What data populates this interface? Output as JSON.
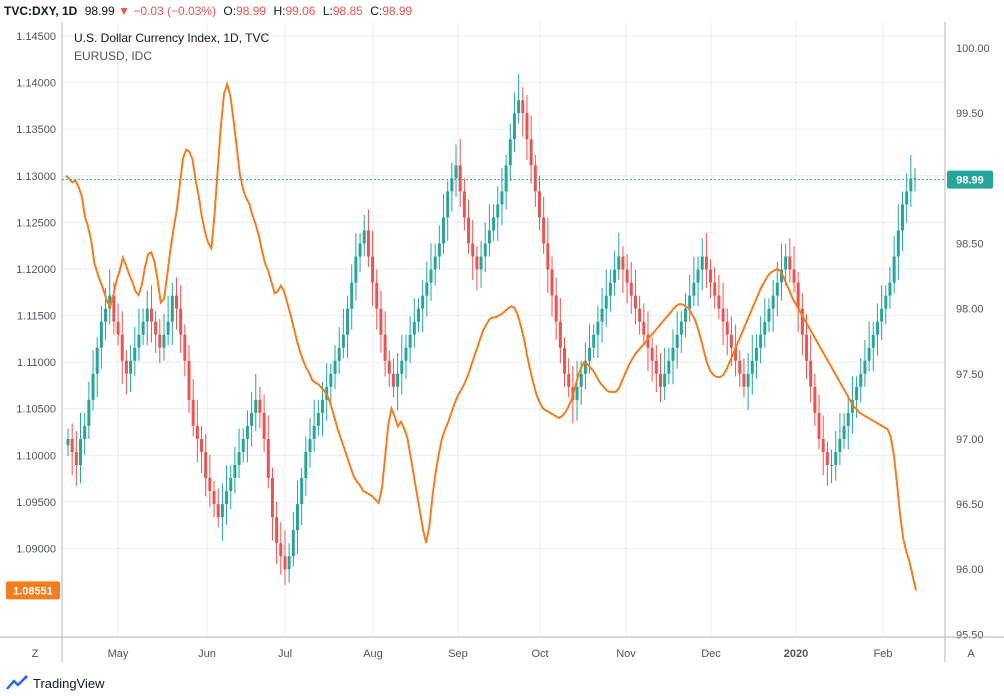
{
  "header": {
    "symbol": "TVC:DXY, 1D",
    "price": "98.99",
    "change_arrow": "▼",
    "change": "−0.03 (−0.03%)",
    "open_label": "O:",
    "open": "98.99",
    "high_label": "H:",
    "high": "99.06",
    "low_label": "L:",
    "low": "98.85",
    "close_label": "C:",
    "close": "98.99"
  },
  "footer": {
    "brand": "TradingView",
    "z_button": "Z",
    "a_button": "A"
  },
  "colors": {
    "up": "#26a69a",
    "down": "#ef5350",
    "eurusd": "#f57c1f",
    "grid": "#e9ecf0",
    "axis_text": "#50535e",
    "last_price": "#26a69a",
    "dotted": "#26a69a"
  },
  "chart_data": {
    "type": "line",
    "title": "U.S. Dollar Currency Index, 1D, TVC",
    "subtitle": "EURUSD, IDC",
    "x_ticks": [
      "May",
      "Jun",
      "Jul",
      "Aug",
      "Sep",
      "Oct",
      "Nov",
      "Dec",
      "2020",
      "Feb"
    ],
    "left_axis": {
      "ylim": [
        1.0805,
        1.1465
      ],
      "ticks": [
        "1.14500",
        "1.14000",
        "1.13500",
        "1.13000",
        "1.12500",
        "1.12000",
        "1.11500",
        "1.11000",
        "1.10500",
        "1.10000",
        "1.09500",
        "1.09000"
      ],
      "last_value_label": "1.08551"
    },
    "right_axis": {
      "ylim": [
        95.48,
        100.2
      ],
      "ticks": [
        "100.00",
        "99.50",
        "99.00",
        "98.50",
        "98.00",
        "97.50",
        "97.00",
        "96.50",
        "96.00",
        "95.50"
      ],
      "last_value_label": "98.99",
      "last_value": 98.99
    },
    "series": [
      {
        "name": "EURUSD",
        "axis": "left",
        "style": "line",
        "values": [
          1.13,
          1.1297,
          1.1293,
          1.1295,
          1.1288,
          1.1278,
          1.1256,
          1.1245,
          1.123,
          1.1206,
          1.1195,
          1.1185,
          1.1176,
          1.1165,
          1.116,
          1.1172,
          1.1188,
          1.1198,
          1.1212,
          1.1204,
          1.1194,
          1.1186,
          1.1176,
          1.1172,
          1.1183,
          1.1202,
          1.1216,
          1.1218,
          1.1208,
          1.1188,
          1.1164,
          1.1168,
          1.1192,
          1.122,
          1.1242,
          1.1262,
          1.129,
          1.1318,
          1.1328,
          1.1326,
          1.1318,
          1.1296,
          1.1278,
          1.1256,
          1.124,
          1.1228,
          1.1222,
          1.1258,
          1.1306,
          1.1352,
          1.1388,
          1.1398,
          1.1386,
          1.136,
          1.1332,
          1.1302,
          1.1286,
          1.1276,
          1.127,
          1.1258,
          1.1248,
          1.1236,
          1.122,
          1.1206,
          1.1198,
          1.1186,
          1.1174,
          1.1176,
          1.1182,
          1.1176,
          1.1164,
          1.1152,
          1.1138,
          1.1124,
          1.1112,
          1.1102,
          1.1094,
          1.1088,
          1.108,
          1.1078,
          1.1076,
          1.1072,
          1.1068,
          1.1062,
          1.1052,
          1.104,
          1.1028,
          1.1018,
          1.1008,
          1.0998,
          1.0988,
          1.0978,
          1.0972,
          1.0968,
          1.0962,
          1.096,
          1.0958,
          1.0956,
          1.0952,
          1.0949,
          1.0965,
          1.0998,
          1.1033,
          1.105,
          1.1042,
          1.1031,
          1.1036,
          1.1029,
          1.1019,
          1.1,
          1.098,
          1.096,
          1.094,
          1.092,
          1.0906,
          1.0924,
          1.0956,
          1.0982,
          1.1002,
          1.1018,
          1.1028,
          1.1036,
          1.1046,
          1.1056,
          1.1064,
          1.107,
          1.1076,
          1.1084,
          1.1094,
          1.1104,
          1.1114,
          1.1124,
          1.1134,
          1.114,
          1.1146,
          1.1148,
          1.1148,
          1.115,
          1.1152,
          1.1155,
          1.1158,
          1.116,
          1.1158,
          1.115,
          1.1138,
          1.1124,
          1.1106,
          1.109,
          1.1076,
          1.1064,
          1.1056,
          1.105,
          1.1048,
          1.1046,
          1.1044,
          1.1042,
          1.104,
          1.1042,
          1.1046,
          1.1052,
          1.106,
          1.1072,
          1.1084,
          1.1094,
          1.11,
          1.1098,
          1.1094,
          1.109,
          1.1084,
          1.1078,
          1.1074,
          1.107,
          1.1068,
          1.1068,
          1.1068,
          1.1072,
          1.108,
          1.1088,
          1.1096,
          1.1102,
          1.1108,
          1.1112,
          1.1116,
          1.112,
          1.1124,
          1.1128,
          1.1132,
          1.1136,
          1.114,
          1.1144,
          1.1148,
          1.1152,
          1.1156,
          1.116,
          1.1162,
          1.1162,
          1.116,
          1.1158,
          1.1152,
          1.1146,
          1.1136,
          1.1124,
          1.111,
          1.1098,
          1.109,
          1.1086,
          1.1084,
          1.1084,
          1.1086,
          1.1092,
          1.11,
          1.1108,
          1.1116,
          1.1124,
          1.1132,
          1.114,
          1.1148,
          1.1156,
          1.1164,
          1.1172,
          1.118,
          1.1186,
          1.1192,
          1.1196,
          1.1198,
          1.12,
          1.1198,
          1.1192,
          1.1184,
          1.1176,
          1.1168,
          1.1162,
          1.1156,
          1.115,
          1.1144,
          1.1138,
          1.1132,
          1.1126,
          1.112,
          1.1114,
          1.1108,
          1.1102,
          1.1096,
          1.109,
          1.1084,
          1.1078,
          1.1072,
          1.1066,
          1.106,
          1.1054,
          1.105,
          1.1046,
          1.1044,
          1.1042,
          1.104,
          1.1038,
          1.1036,
          1.1034,
          1.1032,
          1.103,
          1.1028,
          1.102,
          1.1,
          1.097,
          1.0935,
          1.091,
          1.0896,
          1.0885,
          1.087,
          1.0855
        ]
      },
      {
        "name": "DXY",
        "axis": "right",
        "style": "candles",
        "values": [
          97.0,
          96.9,
          96.8,
          97.0,
          97.1,
          97.3,
          97.5,
          97.7,
          97.9,
          98.0,
          98.1,
          97.9,
          97.8,
          97.6,
          97.5,
          97.6,
          97.7,
          97.8,
          97.9,
          98.0,
          97.9,
          97.8,
          97.7,
          97.8,
          97.9,
          98.1,
          98.0,
          97.8,
          97.6,
          97.3,
          97.1,
          97.0,
          96.9,
          96.7,
          96.6,
          96.5,
          96.4,
          96.5,
          96.6,
          96.7,
          96.8,
          96.9,
          97.0,
          97.1,
          97.2,
          97.3,
          97.2,
          97.0,
          96.7,
          96.4,
          96.2,
          96.1,
          96.0,
          96.1,
          96.3,
          96.5,
          96.7,
          96.9,
          97.0,
          97.1,
          97.2,
          97.3,
          97.4,
          97.5,
          97.6,
          97.7,
          97.8,
          98.0,
          98.2,
          98.4,
          98.5,
          98.6,
          98.4,
          98.2,
          98.0,
          97.8,
          97.6,
          97.5,
          97.4,
          97.5,
          97.6,
          97.7,
          97.8,
          97.9,
          98.0,
          98.1,
          98.2,
          98.3,
          98.4,
          98.5,
          98.7,
          98.9,
          99.0,
          99.1,
          98.9,
          98.7,
          98.5,
          98.4,
          98.3,
          98.4,
          98.5,
          98.6,
          98.7,
          98.8,
          98.9,
          99.1,
          99.3,
          99.5,
          99.6,
          99.5,
          99.3,
          99.1,
          98.9,
          98.7,
          98.5,
          98.3,
          98.1,
          97.9,
          97.7,
          97.5,
          97.4,
          97.3,
          97.4,
          97.5,
          97.6,
          97.7,
          97.8,
          97.9,
          98.0,
          98.1,
          98.2,
          98.3,
          98.4,
          98.3,
          98.2,
          98.1,
          98.0,
          97.9,
          97.8,
          97.7,
          97.6,
          97.5,
          97.4,
          97.5,
          97.6,
          97.7,
          97.8,
          97.9,
          98.0,
          98.1,
          98.2,
          98.3,
          98.4,
          98.3,
          98.2,
          98.1,
          98.0,
          97.9,
          97.8,
          97.7,
          97.6,
          97.5,
          97.4,
          97.5,
          97.6,
          97.7,
          97.8,
          97.9,
          98.0,
          98.1,
          98.2,
          98.3,
          98.4,
          98.3,
          98.2,
          98.0,
          97.8,
          97.6,
          97.4,
          97.2,
          97.0,
          96.9,
          96.8,
          96.8,
          96.9,
          97.0,
          97.1,
          97.2,
          97.3,
          97.4,
          97.5,
          97.6,
          97.7,
          97.8,
          97.9,
          98.0,
          98.1,
          98.2,
          98.4,
          98.6,
          98.8,
          98.9,
          99.0,
          99.0
        ]
      }
    ]
  }
}
